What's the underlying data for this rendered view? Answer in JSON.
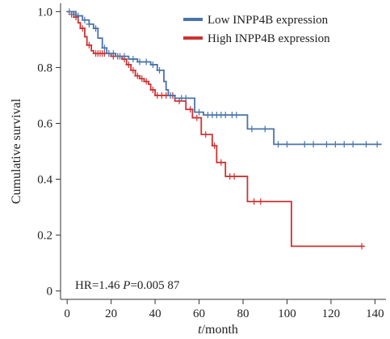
{
  "chart_data": {
    "type": "line",
    "subtype": "kaplan-meier",
    "xlabel": {
      "var": "t",
      "unit": "/month"
    },
    "ylabel": "Cumulative survival",
    "xlim": [
      -3,
      145
    ],
    "ylim": [
      -0.03,
      1.03
    ],
    "xticks": [
      0,
      20,
      40,
      60,
      80,
      100,
      120,
      140
    ],
    "xtick_labels": [
      "0",
      "20",
      "40",
      "60",
      "80",
      "100",
      "120",
      "140"
    ],
    "yticks": [
      0,
      0.2,
      0.4,
      0.6,
      0.8,
      1.0
    ],
    "ytick_labels": [
      "0",
      "0.2",
      "0.4",
      "0.6",
      "0.8",
      "1.0"
    ],
    "grid": false,
    "legend_position": "top-right",
    "annotation": {
      "hr_text": "HR=1.46 ",
      "p_var": "P",
      "p_text": "=0.005 87"
    },
    "series": [
      {
        "name": "Low INPP4B expression",
        "color": "#4a74a8",
        "steps": [
          [
            0,
            1.0
          ],
          [
            4,
            0.985
          ],
          [
            7,
            0.97
          ],
          [
            10,
            0.955
          ],
          [
            12,
            0.94
          ],
          [
            14,
            0.905
          ],
          [
            16,
            0.87
          ],
          [
            18,
            0.85
          ],
          [
            22,
            0.84
          ],
          [
            28,
            0.83
          ],
          [
            32,
            0.82
          ],
          [
            38,
            0.81
          ],
          [
            41,
            0.79
          ],
          [
            44,
            0.75
          ],
          [
            45,
            0.72
          ],
          [
            46,
            0.7
          ],
          [
            49,
            0.69
          ],
          [
            55,
            0.69
          ],
          [
            58,
            0.64
          ],
          [
            62,
            0.63
          ],
          [
            78,
            0.63
          ],
          [
            82,
            0.58
          ],
          [
            92,
            0.58
          ],
          [
            94,
            0.525
          ],
          [
            143,
            0.525
          ]
        ],
        "censored": [
          [
            1,
            1.0
          ],
          [
            3,
            0.99
          ],
          [
            5,
            0.985
          ],
          [
            8,
            0.97
          ],
          [
            10,
            0.955
          ],
          [
            13,
            0.94
          ],
          [
            17,
            0.87
          ],
          [
            19,
            0.85
          ],
          [
            21,
            0.85
          ],
          [
            24,
            0.84
          ],
          [
            26,
            0.84
          ],
          [
            30,
            0.83
          ],
          [
            33,
            0.82
          ],
          [
            36,
            0.82
          ],
          [
            39,
            0.81
          ],
          [
            42,
            0.79
          ],
          [
            47,
            0.7
          ],
          [
            52,
            0.69
          ],
          [
            54,
            0.69
          ],
          [
            60,
            0.64
          ],
          [
            64,
            0.63
          ],
          [
            66,
            0.63
          ],
          [
            68,
            0.63
          ],
          [
            70,
            0.63
          ],
          [
            72,
            0.63
          ],
          [
            75,
            0.63
          ],
          [
            77,
            0.63
          ],
          [
            84,
            0.58
          ],
          [
            90,
            0.58
          ],
          [
            96,
            0.525
          ],
          [
            100,
            0.525
          ],
          [
            108,
            0.525
          ],
          [
            112,
            0.525
          ],
          [
            118,
            0.525
          ],
          [
            122,
            0.525
          ],
          [
            126,
            0.525
          ],
          [
            130,
            0.525
          ],
          [
            136,
            0.525
          ],
          [
            141,
            0.525
          ]
        ]
      },
      {
        "name": "High INPP4B expression",
        "color": "#cc3333",
        "steps": [
          [
            0,
            1.0
          ],
          [
            3,
            0.98
          ],
          [
            5,
            0.96
          ],
          [
            6,
            0.94
          ],
          [
            8,
            0.91
          ],
          [
            9,
            0.88
          ],
          [
            11,
            0.86
          ],
          [
            12,
            0.85
          ],
          [
            18,
            0.85
          ],
          [
            20,
            0.84
          ],
          [
            24,
            0.84
          ],
          [
            25,
            0.83
          ],
          [
            27,
            0.81
          ],
          [
            29,
            0.79
          ],
          [
            31,
            0.77
          ],
          [
            33,
            0.76
          ],
          [
            35,
            0.75
          ],
          [
            37,
            0.74
          ],
          [
            38,
            0.72
          ],
          [
            40,
            0.7
          ],
          [
            47,
            0.7
          ],
          [
            49,
            0.68
          ],
          [
            53,
            0.68
          ],
          [
            54,
            0.65
          ],
          [
            57,
            0.62
          ],
          [
            60,
            0.62
          ],
          [
            61,
            0.56
          ],
          [
            65,
            0.56
          ],
          [
            66,
            0.52
          ],
          [
            68,
            0.46
          ],
          [
            71,
            0.46
          ],
          [
            72,
            0.41
          ],
          [
            79,
            0.41
          ],
          [
            82,
            0.32
          ],
          [
            101,
            0.32
          ],
          [
            102,
            0.16
          ],
          [
            135,
            0.16
          ]
        ],
        "censored": [
          [
            2,
            0.99
          ],
          [
            4,
            0.98
          ],
          [
            7,
            0.94
          ],
          [
            10,
            0.88
          ],
          [
            13,
            0.85
          ],
          [
            14,
            0.85
          ],
          [
            15,
            0.85
          ],
          [
            16,
            0.85
          ],
          [
            17,
            0.85
          ],
          [
            19,
            0.85
          ],
          [
            21,
            0.84
          ],
          [
            23,
            0.84
          ],
          [
            26,
            0.83
          ],
          [
            28,
            0.81
          ],
          [
            30,
            0.79
          ],
          [
            32,
            0.77
          ],
          [
            34,
            0.76
          ],
          [
            36,
            0.75
          ],
          [
            39,
            0.72
          ],
          [
            41,
            0.7
          ],
          [
            43,
            0.7
          ],
          [
            45,
            0.7
          ],
          [
            48,
            0.7
          ],
          [
            51,
            0.68
          ],
          [
            56,
            0.65
          ],
          [
            59,
            0.62
          ],
          [
            63,
            0.56
          ],
          [
            67,
            0.52
          ],
          [
            70,
            0.46
          ],
          [
            74,
            0.41
          ],
          [
            76,
            0.41
          ],
          [
            85,
            0.32
          ],
          [
            88,
            0.32
          ],
          [
            134,
            0.16
          ]
        ]
      }
    ]
  }
}
